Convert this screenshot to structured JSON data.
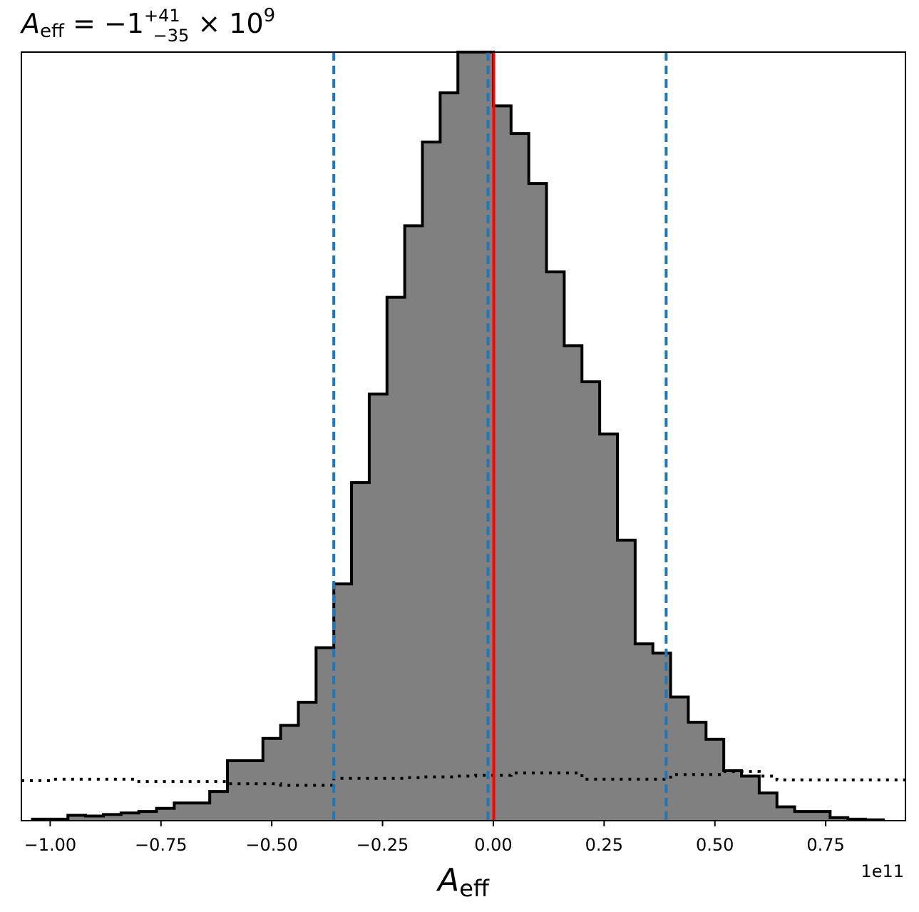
{
  "chart_data": {
    "type": "bar",
    "title": {
      "symbol": "A",
      "subscript": "eff",
      "equals": " = ",
      "value": "−1",
      "sup": "+41",
      "sub": "−35",
      "times": " × 10",
      "exp": "9"
    },
    "xlabel": {
      "symbol": "A",
      "subscript": "eff"
    },
    "x_offset_label": "1e11",
    "xlim": [
      -1.065,
      0.93
    ],
    "ylim": [
      0,
      1.0
    ],
    "xticks": [
      -1.0,
      -0.75,
      -0.5,
      -0.25,
      0.0,
      0.25,
      0.5,
      0.75
    ],
    "xtick_labels": [
      "−1.00",
      "−0.75",
      "−0.50",
      "−0.25",
      "0.00",
      "0.25",
      "0.50",
      "0.75"
    ],
    "histogram": {
      "bin_edges": [
        -1.04,
        -1.0,
        -0.96,
        -0.92,
        -0.88,
        -0.84,
        -0.8,
        -0.76,
        -0.72,
        -0.68,
        -0.64,
        -0.6,
        -0.56,
        -0.52,
        -0.48,
        -0.44,
        -0.4,
        -0.36,
        -0.32,
        -0.28,
        -0.24,
        -0.2,
        -0.16,
        -0.12,
        -0.08,
        -0.04,
        0.0,
        0.04,
        0.08,
        0.12,
        0.16,
        0.2,
        0.24,
        0.28,
        0.32,
        0.36,
        0.4,
        0.44,
        0.48,
        0.52,
        0.56,
        0.6,
        0.64,
        0.68,
        0.72,
        0.76,
        0.8,
        0.84,
        0.88
      ],
      "heights": [
        0.002,
        0.002,
        0.007,
        0.006,
        0.008,
        0.01,
        0.012,
        0.016,
        0.023,
        0.023,
        0.038,
        0.078,
        0.078,
        0.107,
        0.124,
        0.154,
        0.225,
        0.308,
        0.44,
        0.555,
        0.681,
        0.774,
        0.883,
        0.947,
        1.0,
        1.0,
        0.93,
        0.894,
        0.829,
        0.714,
        0.618,
        0.571,
        0.503,
        0.365,
        0.23,
        0.218,
        0.161,
        0.128,
        0.106,
        0.065,
        0.058,
        0.036,
        0.018,
        0.012,
        0.012,
        0.004,
        0.002,
        0.001
      ],
      "fill": "#808080",
      "edge": "#000000"
    },
    "prior": {
      "style": "dotted",
      "color": "#000000",
      "x": [
        -1.065,
        -1.0,
        -0.96,
        -0.92,
        -0.88,
        -0.84,
        -0.8,
        -0.76,
        -0.72,
        -0.68,
        -0.64,
        -0.6,
        -0.56,
        -0.52,
        -0.48,
        -0.44,
        -0.4,
        -0.36,
        -0.32,
        -0.28,
        -0.24,
        -0.2,
        -0.16,
        -0.12,
        -0.08,
        -0.04,
        0.0,
        0.04,
        0.08,
        0.12,
        0.16,
        0.2,
        0.24,
        0.28,
        0.32,
        0.36,
        0.4,
        0.44,
        0.48,
        0.52,
        0.56,
        0.6,
        0.64,
        0.68,
        0.72,
        0.76,
        0.8,
        0.84,
        0.88,
        0.93
      ],
      "y": [
        0.052,
        0.054,
        0.054,
        0.054,
        0.054,
        0.054,
        0.051,
        0.051,
        0.051,
        0.051,
        0.051,
        0.048,
        0.048,
        0.048,
        0.046,
        0.046,
        0.046,
        0.055,
        0.055,
        0.055,
        0.055,
        0.056,
        0.057,
        0.057,
        0.058,
        0.059,
        0.059,
        0.062,
        0.062,
        0.062,
        0.062,
        0.054,
        0.054,
        0.054,
        0.054,
        0.054,
        0.06,
        0.06,
        0.06,
        0.064,
        0.064,
        0.058,
        0.053,
        0.053,
        0.053,
        0.053,
        0.053,
        0.053,
        0.053,
        0.053
      ]
    },
    "quantile_lines": {
      "values": [
        -0.36,
        -0.012,
        0.39
      ],
      "color": "#1f77b4",
      "style": "dashed"
    },
    "truth_line": {
      "value": 0.001,
      "color": "#ff0000"
    }
  }
}
